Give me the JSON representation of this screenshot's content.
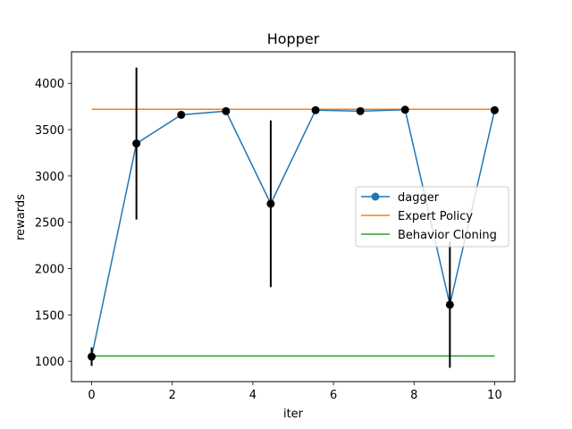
{
  "chart_data": {
    "type": "line",
    "title": "Hopper",
    "xlabel": "iter",
    "ylabel": "rewards",
    "xlim": [
      -0.5,
      10.5
    ],
    "ylim": [
      780,
      4340
    ],
    "xticks": [
      0,
      2,
      4,
      6,
      8,
      10
    ],
    "yticks": [
      1000,
      1500,
      2000,
      2500,
      3000,
      3500,
      4000
    ],
    "grid": false,
    "legend_position": "center-right",
    "series": [
      {
        "name": "dagger",
        "kind": "line-with-errorbars",
        "color": "#1f77b4",
        "marker_color": "#000000",
        "errorbar_color": "#000000",
        "x": [
          0,
          1.111,
          2.222,
          3.333,
          4.444,
          5.556,
          6.667,
          7.778,
          8.889,
          10
        ],
        "y": [
          1050,
          3350,
          3660,
          3700,
          2700,
          3710,
          3700,
          3715,
          1610,
          3710
        ],
        "yerr": [
          100,
          820,
          0,
          0,
          900,
          0,
          0,
          0,
          680,
          0
        ]
      },
      {
        "name": "Expert Policy",
        "kind": "line",
        "color": "#ff7f0e",
        "x": [
          0,
          10
        ],
        "y": [
          3720,
          3720
        ]
      },
      {
        "name": "Behavior Cloning",
        "kind": "line",
        "color": "#2ca02c",
        "x": [
          0,
          10
        ],
        "y": [
          1057,
          1057
        ]
      }
    ]
  }
}
